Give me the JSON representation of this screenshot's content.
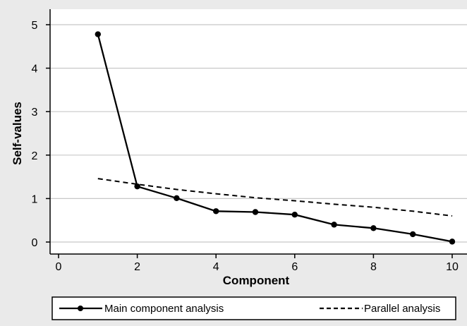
{
  "chart_data": {
    "type": "line",
    "xlabel": "Component",
    "ylabel": "Self-values",
    "xlim": [
      0,
      10
    ],
    "ylim": [
      0,
      5
    ],
    "x_ticks": [
      "0",
      "2",
      "4",
      "6",
      "8",
      "10"
    ],
    "y_ticks": [
      "0",
      "1",
      "2",
      "3",
      "4",
      "5"
    ],
    "grid": "horizontal",
    "legend_position": "bottom",
    "series": [
      {
        "name": "Main component analysis",
        "style": "solid-with-markers",
        "color": "#000000",
        "x": [
          1,
          2,
          3,
          4,
          5,
          6,
          7,
          8,
          9,
          10
        ],
        "y": [
          4.78,
          1.28,
          1.01,
          0.71,
          0.69,
          0.63,
          0.4,
          0.32,
          0.18,
          0.01
        ]
      },
      {
        "name": "Parallel analysis",
        "style": "dashed",
        "color": "#000000",
        "x": [
          1,
          2,
          3,
          4,
          5,
          6,
          7,
          8,
          9,
          10
        ],
        "y": [
          1.46,
          1.33,
          1.21,
          1.11,
          1.02,
          0.95,
          0.87,
          0.8,
          0.71,
          0.6
        ]
      }
    ]
  }
}
